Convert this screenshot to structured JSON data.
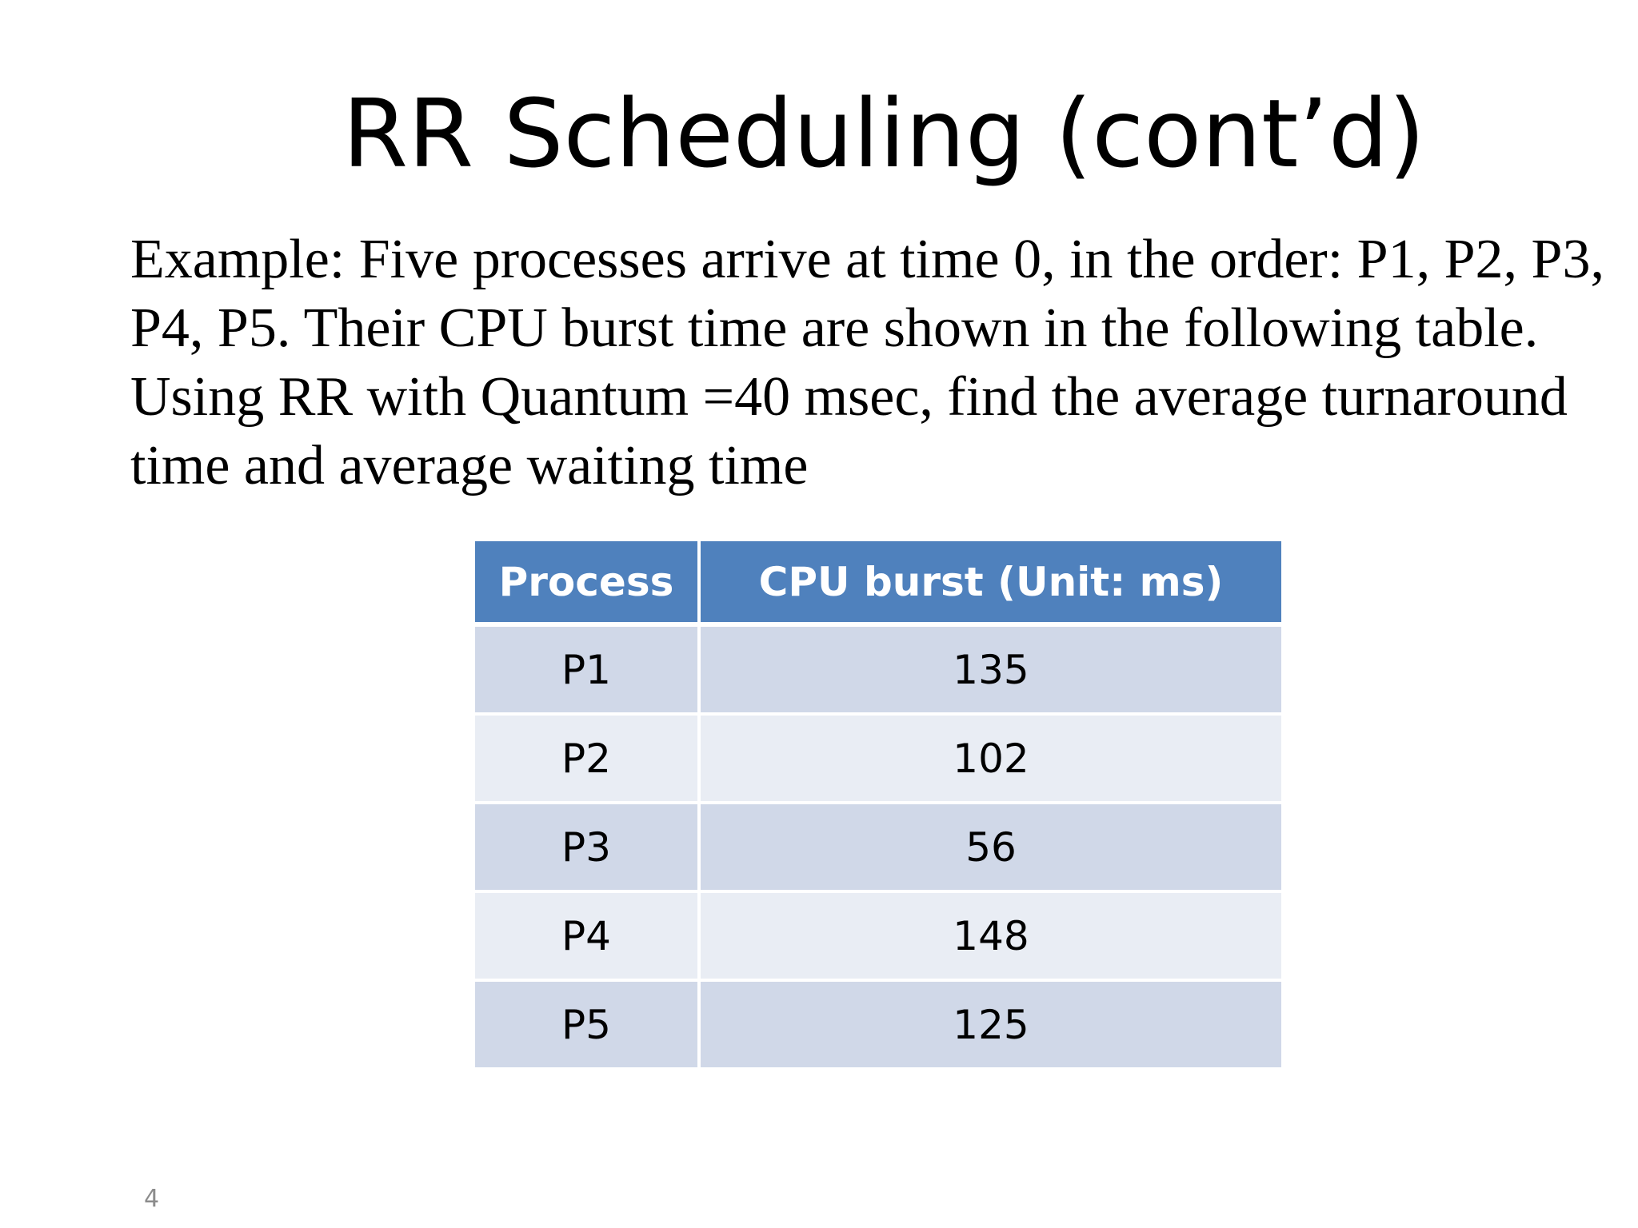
{
  "slide": {
    "title": "RR Scheduling (cont’d)",
    "body": "Example: Five processes arrive at time 0, in the order: P1, P2, P3, P4, P5. Their CPU burst time are shown in the following table. Using RR with Quantum =40 msec, find the average turnaround time and average waiting time",
    "table": {
      "headers": [
        "Process",
        "CPU burst (Unit: ms)"
      ],
      "rows": [
        [
          "P1",
          "135"
        ],
        [
          "P2",
          "102"
        ],
        [
          "P3",
          "56"
        ],
        [
          "P4",
          "148"
        ],
        [
          "P5",
          "125"
        ]
      ]
    },
    "page_number": "4"
  },
  "colors": {
    "header_bg": "#4f81bd",
    "row_dark": "#d0d8e8",
    "row_light": "#e9edf4"
  }
}
